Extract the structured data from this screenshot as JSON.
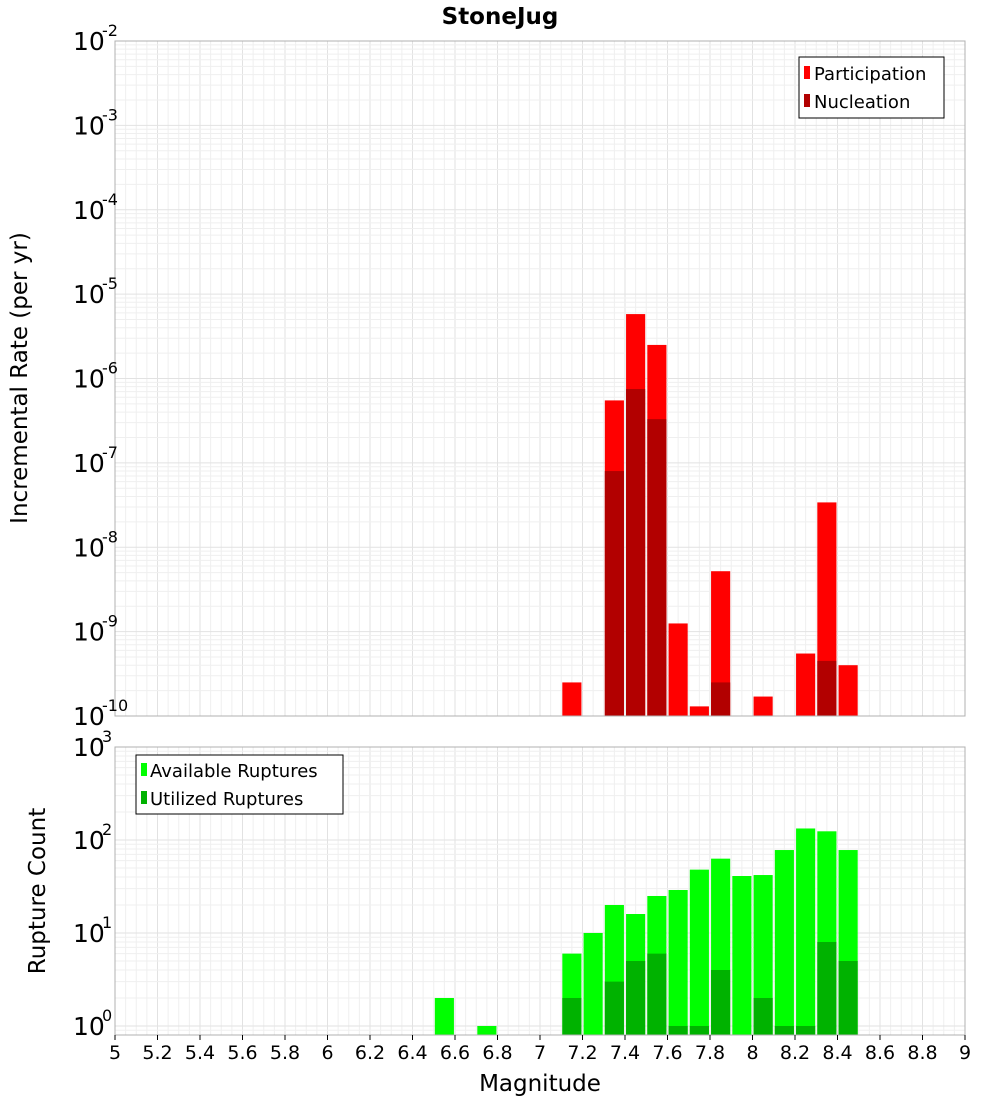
{
  "chart_data": [
    {
      "type": "bar",
      "title": "StoneJug",
      "xlabel": "",
      "ylabel": "Incremental Rate (per yr)",
      "yscale": "log",
      "ylim": [
        1e-10,
        0.01
      ],
      "xlim": [
        5,
        9
      ],
      "y_tick_exponents": [
        "-10",
        "-9",
        "-8",
        "-7",
        "-6",
        "-5",
        "-4",
        "-3",
        "-2"
      ],
      "grid": true,
      "legend_position": "top-right",
      "series": [
        {
          "name": "Participation",
          "color": "#ff0000",
          "points": [
            {
              "x": 7.15,
              "y": 2.5e-10
            },
            {
              "x": 7.35,
              "y": 5.5e-07
            },
            {
              "x": 7.45,
              "y": 5.8e-06
            },
            {
              "x": 7.55,
              "y": 2.5e-06
            },
            {
              "x": 7.65,
              "y": 1.25e-09
            },
            {
              "x": 7.75,
              "y": 1.3e-10
            },
            {
              "x": 7.85,
              "y": 5.2e-09
            },
            {
              "x": 8.05,
              "y": 1.7e-10
            },
            {
              "x": 8.25,
              "y": 5.5e-10
            },
            {
              "x": 8.35,
              "y": 3.4e-08
            },
            {
              "x": 8.45,
              "y": 4e-10
            }
          ]
        },
        {
          "name": "Nucleation",
          "color": "#b20000",
          "points": [
            {
              "x": 7.35,
              "y": 8e-08
            },
            {
              "x": 7.45,
              "y": 7.5e-07
            },
            {
              "x": 7.55,
              "y": 3.3e-07
            },
            {
              "x": 7.85,
              "y": 2.5e-10
            },
            {
              "x": 8.35,
              "y": 4.5e-10
            }
          ]
        }
      ]
    },
    {
      "type": "bar",
      "title": "",
      "xlabel": "Magnitude",
      "ylabel": "Rupture Count",
      "yscale": "log",
      "ylim": [
        0.8,
        1000
      ],
      "xlim": [
        5,
        9
      ],
      "x_ticks": [
        "5",
        "5.2",
        "5.4",
        "5.6",
        "5.8",
        "6",
        "6.2",
        "6.4",
        "6.6",
        "6.8",
        "7",
        "7.2",
        "7.4",
        "7.6",
        "7.8",
        "8",
        "8.2",
        "8.4",
        "8.6",
        "8.8",
        "9"
      ],
      "y_tick_exponents": [
        "0",
        "1",
        "2",
        "3"
      ],
      "grid": true,
      "legend_position": "top-left",
      "series": [
        {
          "name": "Available Ruptures",
          "color": "#00ff00",
          "points": [
            {
              "x": 6.55,
              "y": 2
            },
            {
              "x": 6.75,
              "y": 1
            },
            {
              "x": 7.15,
              "y": 6
            },
            {
              "x": 7.25,
              "y": 10
            },
            {
              "x": 7.35,
              "y": 20
            },
            {
              "x": 7.45,
              "y": 16
            },
            {
              "x": 7.55,
              "y": 25
            },
            {
              "x": 7.65,
              "y": 29
            },
            {
              "x": 7.75,
              "y": 48
            },
            {
              "x": 7.85,
              "y": 63
            },
            {
              "x": 7.95,
              "y": 41
            },
            {
              "x": 8.05,
              "y": 42
            },
            {
              "x": 8.15,
              "y": 78
            },
            {
              "x": 8.25,
              "y": 133
            },
            {
              "x": 8.35,
              "y": 124
            },
            {
              "x": 8.45,
              "y": 78
            }
          ]
        },
        {
          "name": "Utilized Ruptures",
          "color": "#00b200",
          "points": [
            {
              "x": 7.15,
              "y": 2
            },
            {
              "x": 7.35,
              "y": 3
            },
            {
              "x": 7.45,
              "y": 5
            },
            {
              "x": 7.55,
              "y": 6
            },
            {
              "x": 7.65,
              "y": 1
            },
            {
              "x": 7.75,
              "y": 1
            },
            {
              "x": 7.85,
              "y": 4
            },
            {
              "x": 8.05,
              "y": 2
            },
            {
              "x": 8.15,
              "y": 1
            },
            {
              "x": 8.25,
              "y": 1
            },
            {
              "x": 8.35,
              "y": 8
            },
            {
              "x": 8.45,
              "y": 5
            }
          ]
        }
      ]
    }
  ]
}
